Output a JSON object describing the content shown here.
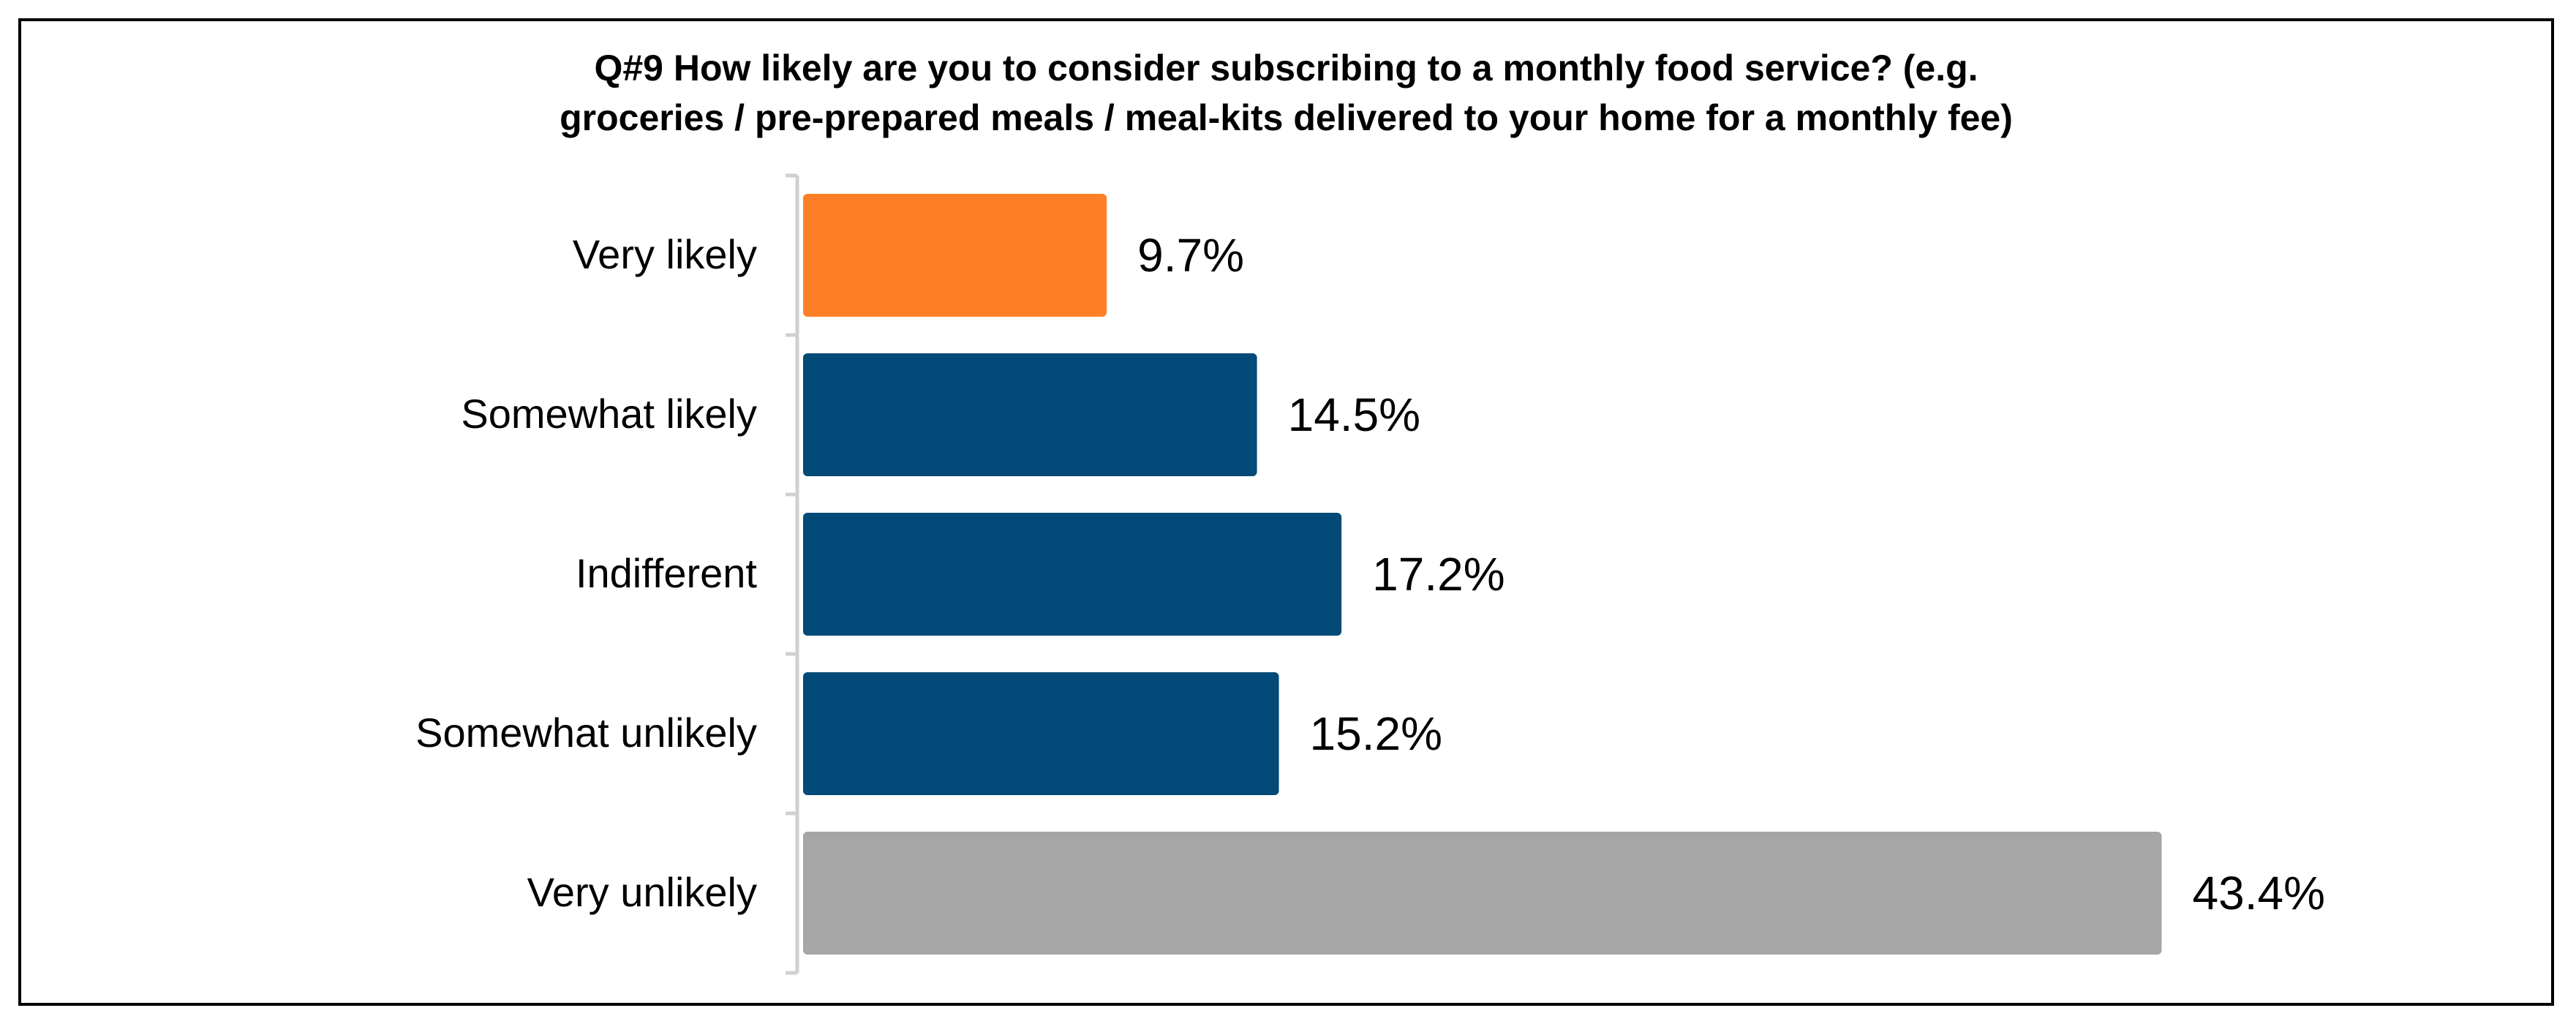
{
  "chart_data": {
    "type": "bar",
    "orientation": "horizontal",
    "title_lines": [
      "Q#9 How likely are you to consider subscribing to a monthly food service? (e.g.",
      "groceries / pre-prepared meals / meal-kits delivered to your home for a monthly fee)"
    ],
    "categories": [
      "Very likely",
      "Somewhat likely",
      "Indifferent",
      "Somewhat unlikely",
      "Very unlikely"
    ],
    "values": [
      9.7,
      14.5,
      17.2,
      15.2,
      43.4
    ],
    "value_labels": [
      "9.7%",
      "14.5%",
      "17.2%",
      "15.2%",
      "43.4%"
    ],
    "bar_colors": [
      "#FF7F27",
      "#034A78",
      "#034A78",
      "#034A78",
      "#A6A6A6"
    ],
    "xlim": [
      0,
      50
    ],
    "grid": false,
    "legend": "none"
  }
}
